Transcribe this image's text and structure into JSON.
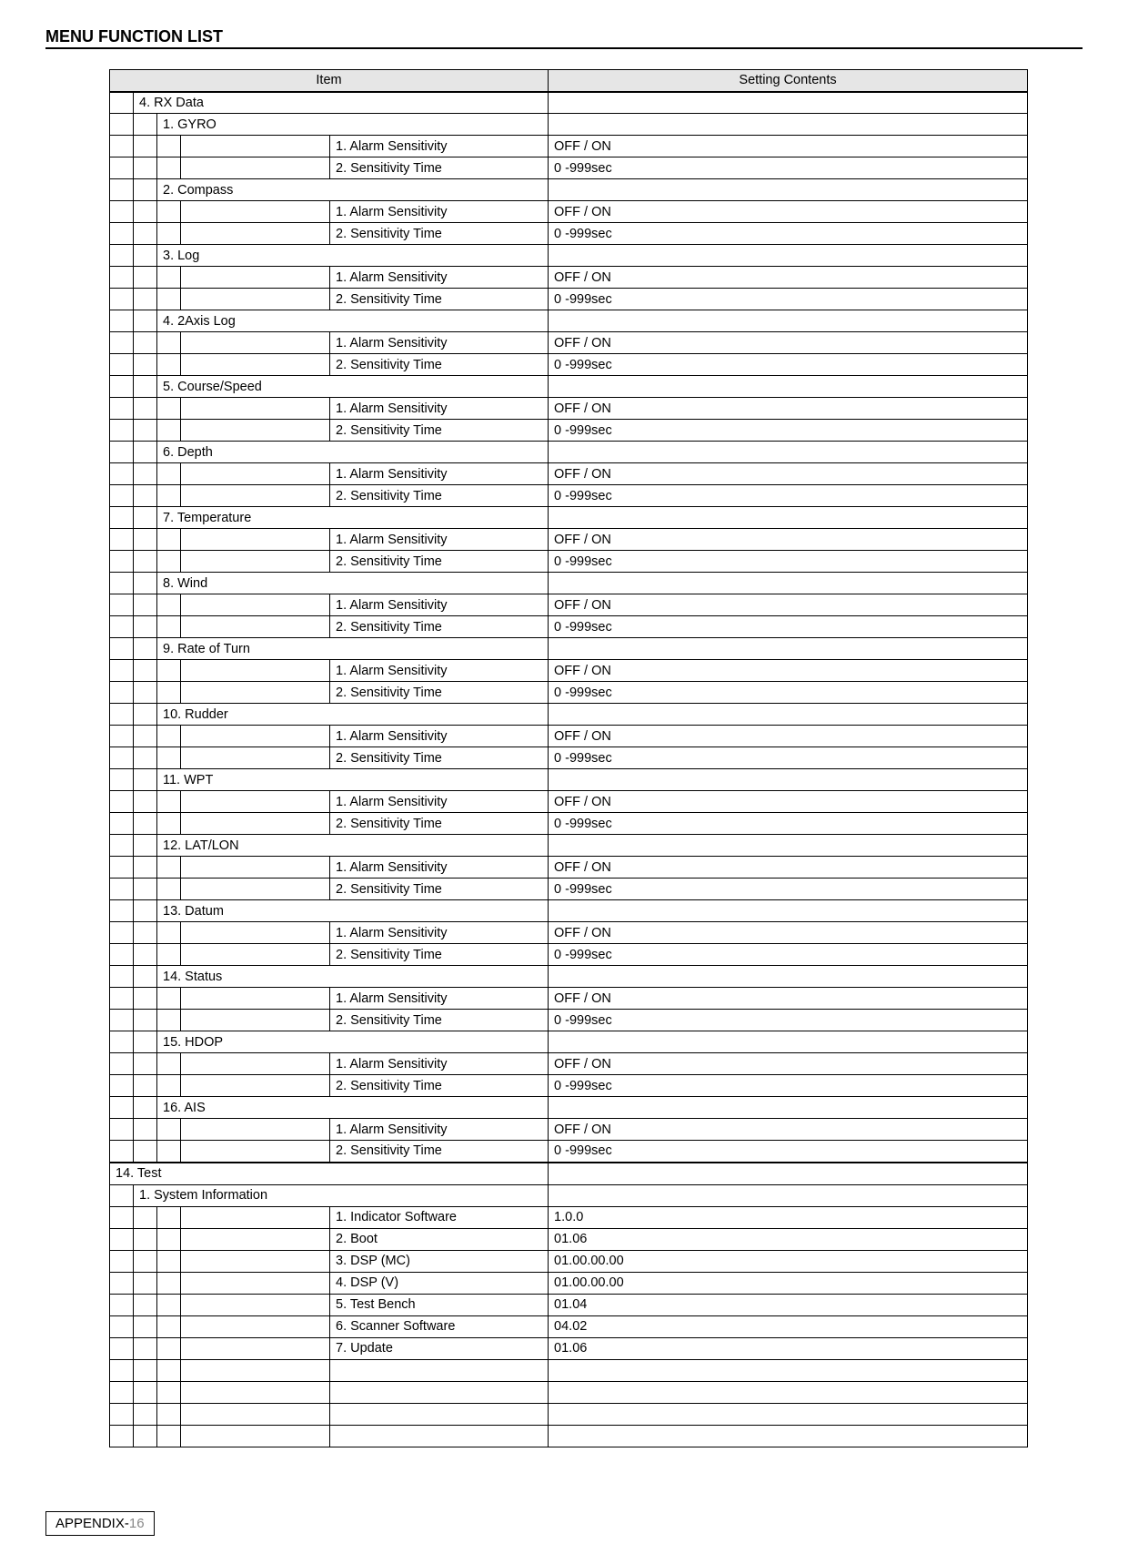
{
  "page_title": "MENU FUNCTION LIST",
  "footer_prefix": "APPENDIX-",
  "footer_page": "16",
  "colors": {
    "header_bg": "#e6e6e6",
    "border": "#000000",
    "footer_grey": "#888888",
    "background": "#ffffff"
  },
  "header": {
    "item": "Item",
    "settings": "Setting Contents"
  },
  "rows": [
    {
      "level": 1,
      "label": "4. RX Data",
      "value": ""
    },
    {
      "level": 2,
      "label": "1. GYRO",
      "value": ""
    },
    {
      "level": 4,
      "label": "1. Alarm Sensitivity",
      "value": "OFF / ON"
    },
    {
      "level": 4,
      "label": "2. Sensitivity Time",
      "value": "0 -999sec"
    },
    {
      "level": 2,
      "label": "2. Compass",
      "value": ""
    },
    {
      "level": 4,
      "label": "1. Alarm Sensitivity",
      "value": "OFF / ON"
    },
    {
      "level": 4,
      "label": "2. Sensitivity Time",
      "value": "0 -999sec"
    },
    {
      "level": 2,
      "label": "3. Log",
      "value": ""
    },
    {
      "level": 4,
      "label": "1. Alarm Sensitivity",
      "value": "OFF / ON"
    },
    {
      "level": 4,
      "label": "2. Sensitivity Time",
      "value": "0 -999sec"
    },
    {
      "level": 2,
      "label": "4. 2Axis Log",
      "value": ""
    },
    {
      "level": 4,
      "label": "1. Alarm Sensitivity",
      "value": "OFF / ON"
    },
    {
      "level": 4,
      "label": "2. Sensitivity Time",
      "value": "0 -999sec"
    },
    {
      "level": 2,
      "label": "5. Course/Speed",
      "value": ""
    },
    {
      "level": 4,
      "label": "1. Alarm Sensitivity",
      "value": "OFF / ON"
    },
    {
      "level": 4,
      "label": "2. Sensitivity Time",
      "value": "0 -999sec"
    },
    {
      "level": 2,
      "label": "6. Depth",
      "value": ""
    },
    {
      "level": 4,
      "label": "1. Alarm Sensitivity",
      "value": "OFF / ON"
    },
    {
      "level": 4,
      "label": "2. Sensitivity Time",
      "value": "0 -999sec"
    },
    {
      "level": 2,
      "label": "7. Temperature",
      "value": ""
    },
    {
      "level": 4,
      "label": "1. Alarm Sensitivity",
      "value": "OFF / ON"
    },
    {
      "level": 4,
      "label": "2. Sensitivity Time",
      "value": "0 -999sec"
    },
    {
      "level": 2,
      "label": "8. Wind",
      "value": ""
    },
    {
      "level": 4,
      "label": "1. Alarm Sensitivity",
      "value": "OFF / ON"
    },
    {
      "level": 4,
      "label": "2. Sensitivity Time",
      "value": "0 -999sec"
    },
    {
      "level": 2,
      "label": "9. Rate of Turn",
      "value": ""
    },
    {
      "level": 4,
      "label": "1. Alarm Sensitivity",
      "value": "OFF / ON"
    },
    {
      "level": 4,
      "label": "2. Sensitivity Time",
      "value": "0 -999sec"
    },
    {
      "level": 2,
      "label": "10. Rudder",
      "value": ""
    },
    {
      "level": 4,
      "label": "1. Alarm Sensitivity",
      "value": "OFF / ON"
    },
    {
      "level": 4,
      "label": "2. Sensitivity Time",
      "value": "0 -999sec"
    },
    {
      "level": 2,
      "label": "11. WPT",
      "value": ""
    },
    {
      "level": 4,
      "label": "1. Alarm Sensitivity",
      "value": "OFF / ON"
    },
    {
      "level": 4,
      "label": "2. Sensitivity Time",
      "value": "0 -999sec"
    },
    {
      "level": 2,
      "label": "12. LAT/LON",
      "value": ""
    },
    {
      "level": 4,
      "label": "1. Alarm Sensitivity",
      "value": "OFF / ON"
    },
    {
      "level": 4,
      "label": "2. Sensitivity Time",
      "value": "0 -999sec"
    },
    {
      "level": 2,
      "label": "13. Datum",
      "value": ""
    },
    {
      "level": 4,
      "label": "1. Alarm Sensitivity",
      "value": "OFF / ON"
    },
    {
      "level": 4,
      "label": "2. Sensitivity Time",
      "value": "0 -999sec"
    },
    {
      "level": 2,
      "label": "14. Status",
      "value": ""
    },
    {
      "level": 4,
      "label": "1. Alarm Sensitivity",
      "value": "OFF / ON"
    },
    {
      "level": 4,
      "label": "2. Sensitivity Time",
      "value": "0 -999sec"
    },
    {
      "level": 2,
      "label": "15. HDOP",
      "value": ""
    },
    {
      "level": 4,
      "label": "1. Alarm Sensitivity",
      "value": "OFF / ON"
    },
    {
      "level": 4,
      "label": "2. Sensitivity Time",
      "value": "0 -999sec"
    },
    {
      "level": 2,
      "label": "16. AIS",
      "value": ""
    },
    {
      "level": 4,
      "label": "1. Alarm Sensitivity",
      "value": "OFF / ON"
    },
    {
      "level": 4,
      "label": "2. Sensitivity Time",
      "value": "0 -999sec"
    },
    {
      "level": 0,
      "major": true,
      "label": "14. Test",
      "value": ""
    },
    {
      "level": 1,
      "label": "1. System Information",
      "value": ""
    },
    {
      "level": 4,
      "label": "1. Indicator Software",
      "value": "1.0.0"
    },
    {
      "level": 4,
      "label": "2. Boot",
      "value": "01.06"
    },
    {
      "level": 4,
      "label": "3. DSP (MC)",
      "value": "01.00.00.00"
    },
    {
      "level": 4,
      "label": "4. DSP (V)",
      "value": "01.00.00.00"
    },
    {
      "level": 4,
      "label": "5. Test Bench",
      "value": "01.04"
    },
    {
      "level": 4,
      "label": "6. Scanner Software",
      "value": "04.02"
    },
    {
      "level": 4,
      "label": "7. Update",
      "value": "01.06"
    },
    {
      "level": -1,
      "label": "",
      "value": ""
    },
    {
      "level": -1,
      "label": "",
      "value": ""
    },
    {
      "level": -1,
      "label": "",
      "value": ""
    },
    {
      "level": -1,
      "label": "",
      "value": ""
    }
  ]
}
